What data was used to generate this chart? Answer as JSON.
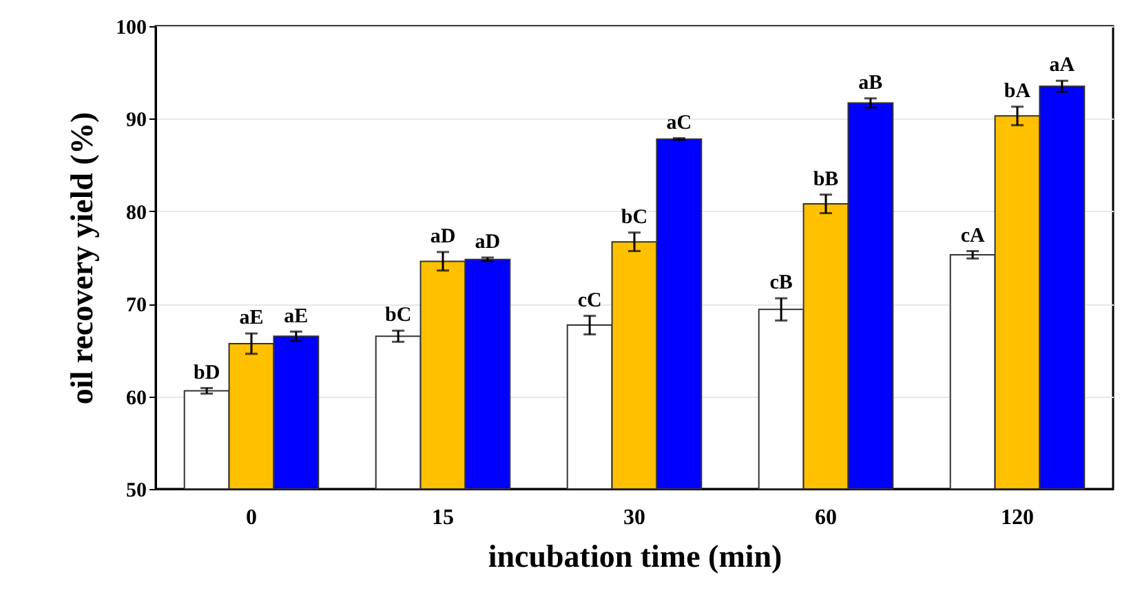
{
  "chart_data": {
    "type": "bar",
    "xlabel": "incubation time (min)",
    "ylabel": "oil recovery yield (%)",
    "categories": [
      "0",
      "15",
      "30",
      "60",
      "120"
    ],
    "ylim": [
      50,
      100
    ],
    "yticks": [
      50,
      60,
      70,
      80,
      90,
      100
    ],
    "grid": "y",
    "series": [
      {
        "color": "#ffffff",
        "values": [
          60.6,
          66.5,
          67.7,
          69.4,
          75.3
        ],
        "errors": [
          0.3,
          0.6,
          1.0,
          1.2,
          0.4
        ],
        "value_labels": [
          "bD",
          "bC",
          "cC",
          "cB",
          "cA"
        ]
      },
      {
        "color": "#ffc000",
        "values": [
          65.7,
          74.6,
          76.7,
          80.8,
          90.3
        ],
        "errors": [
          1.1,
          1.0,
          1.0,
          1.0,
          1.0
        ],
        "value_labels": [
          "aE",
          "aD",
          "bC",
          "bB",
          "bA"
        ]
      },
      {
        "color": "#0000ff",
        "values": [
          66.5,
          74.8,
          87.8,
          91.7,
          93.5
        ],
        "errors": [
          0.5,
          0.2,
          0.1,
          0.5,
          0.6
        ],
        "value_labels": [
          "aE",
          "aD",
          "aC",
          "aB",
          "aA"
        ]
      }
    ]
  }
}
